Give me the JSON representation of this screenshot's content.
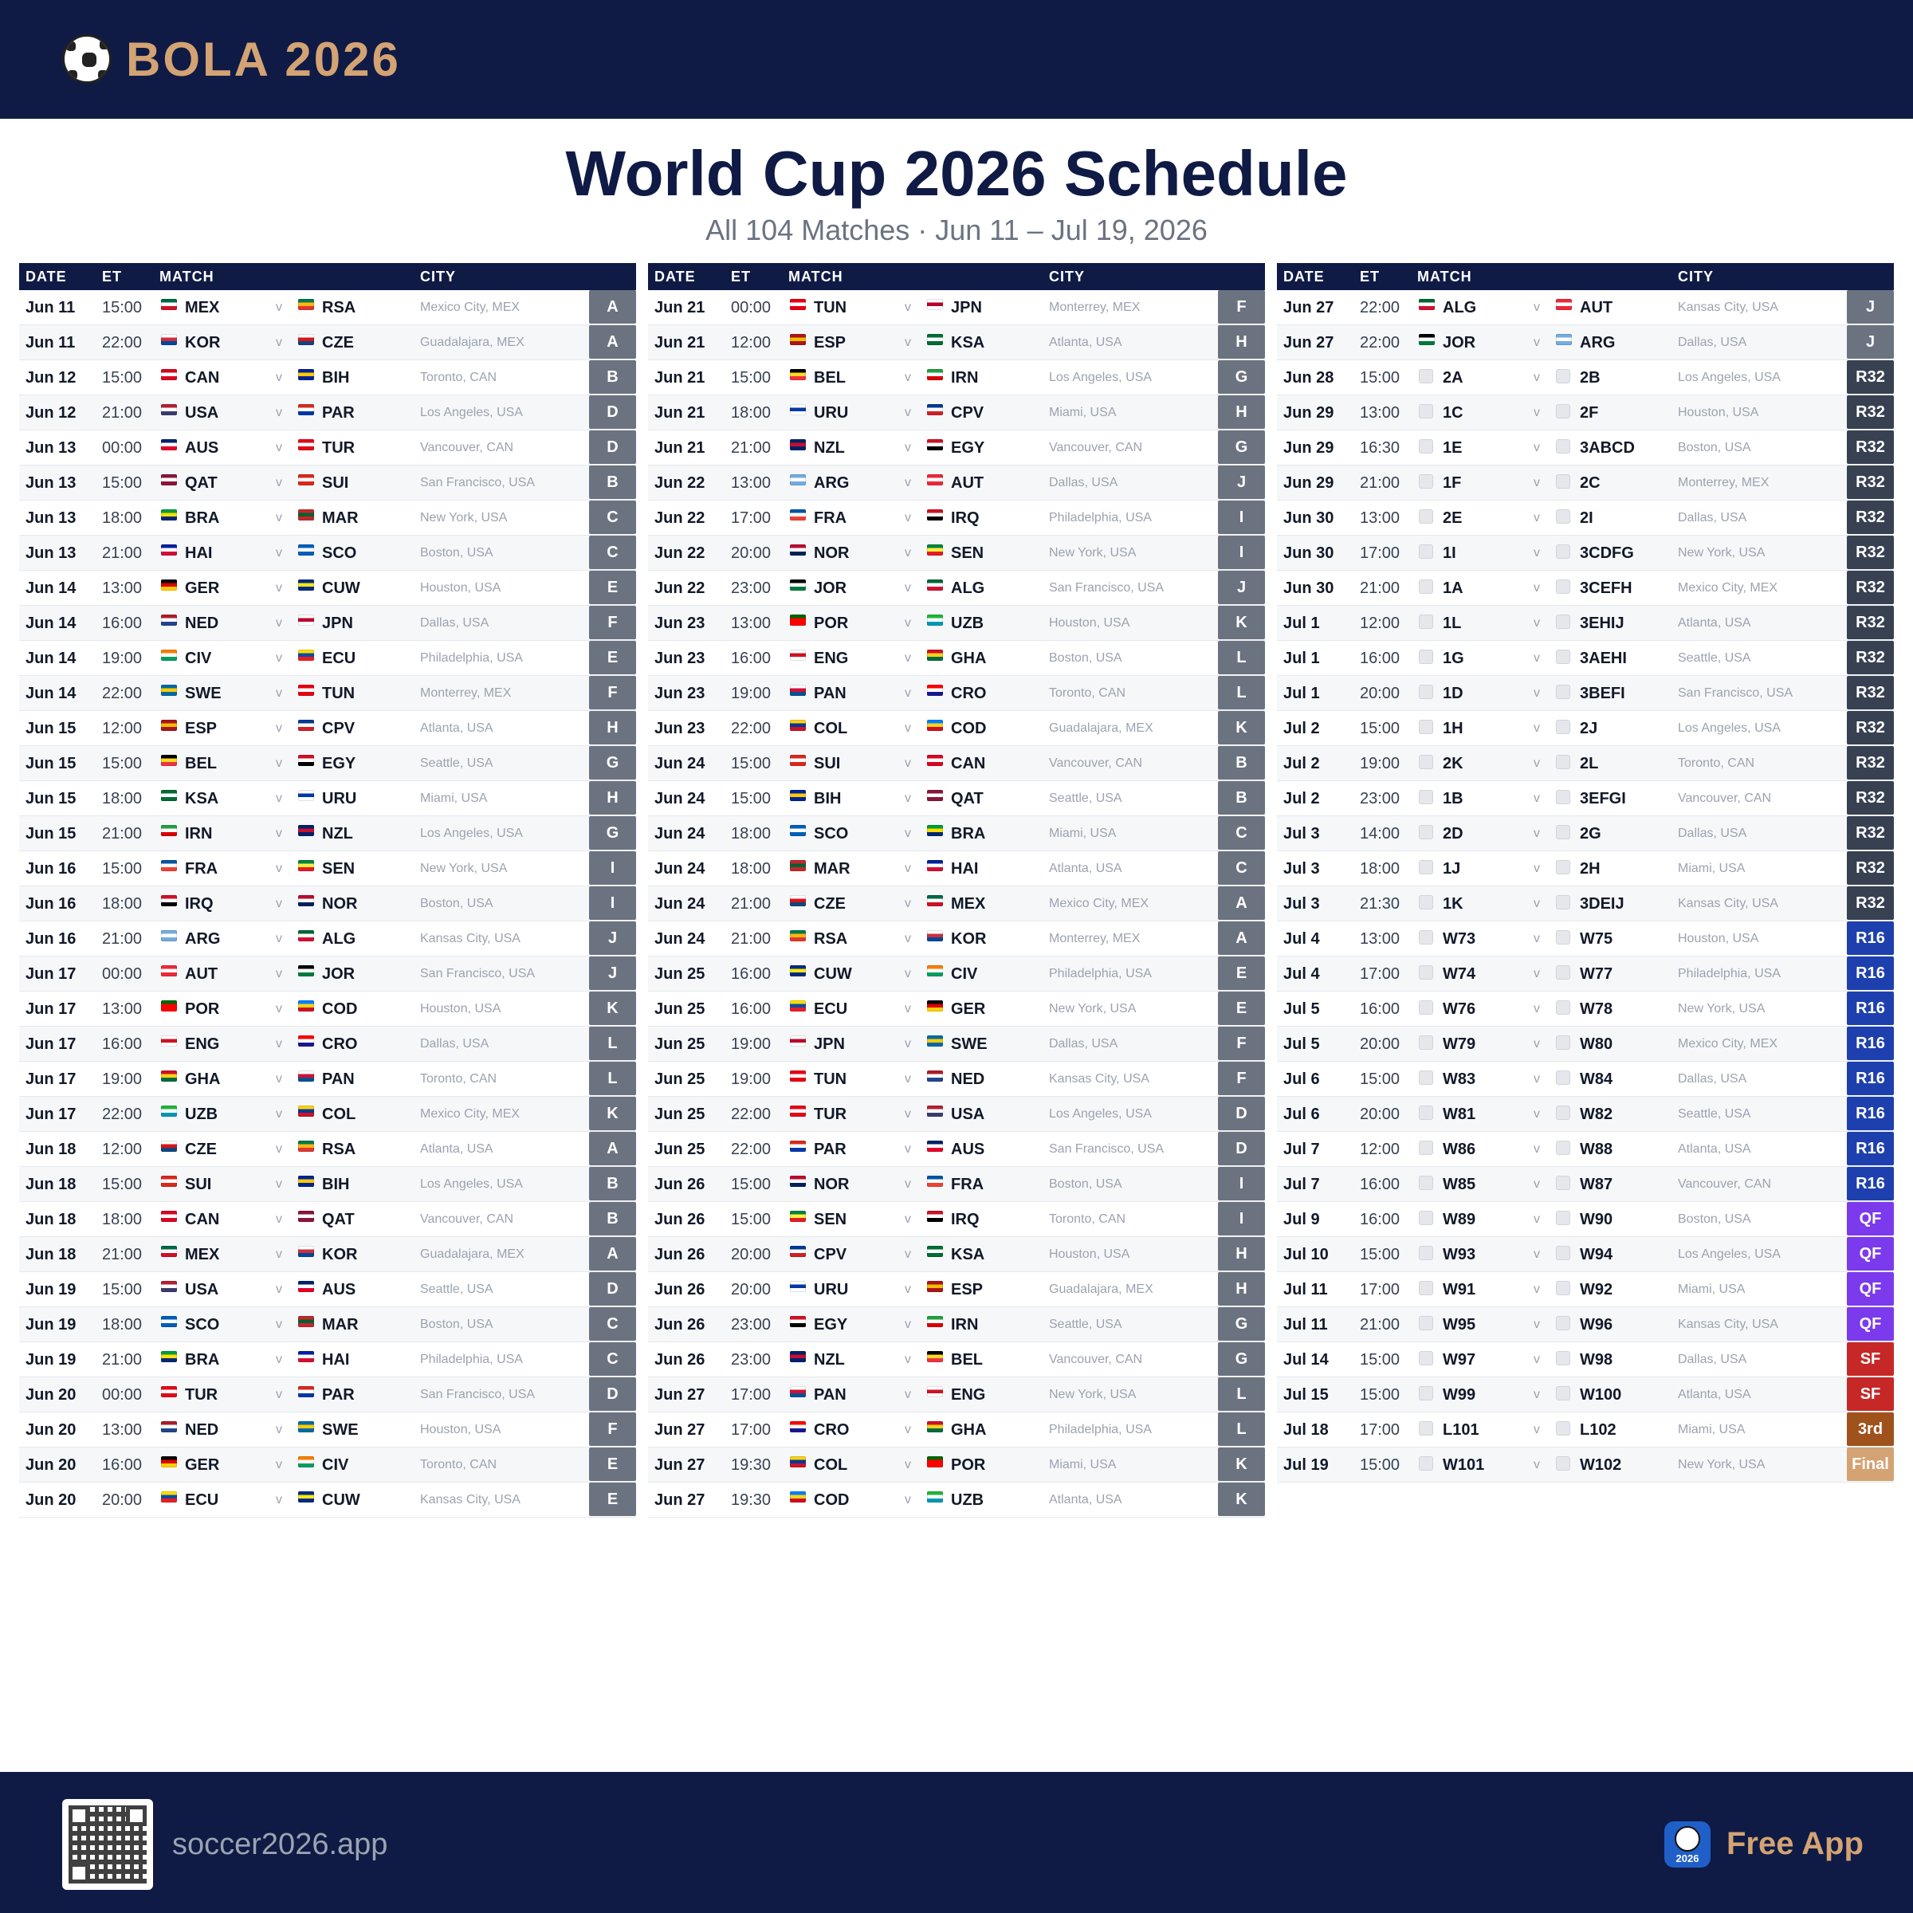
{
  "brand": {
    "name": "BOLA 2026",
    "icon": "soccer-ball-icon"
  },
  "title": "World Cup 2026 Schedule",
  "subtitle": "All 104 Matches · Jun 11 – Jul 19, 2026",
  "headers": {
    "date": "DATE",
    "et": "ET",
    "match": "MATCH",
    "city": "CITY"
  },
  "vs": "v",
  "stage_colors": {
    "group": "#6b7280",
    "R32": "#374151",
    "R16": "#1e40af",
    "QF": "#7c3aed",
    "SF": "#c62828",
    "3rd": "#a0521d",
    "Final": "#d4a373"
  },
  "columns": [
    [
      [
        "Jun 11",
        "15:00",
        "MEX",
        "RSA",
        "Mexico City, MEX",
        "A"
      ],
      [
        "Jun 11",
        "22:00",
        "KOR",
        "CZE",
        "Guadalajara, MEX",
        "A"
      ],
      [
        "Jun 12",
        "15:00",
        "CAN",
        "BIH",
        "Toronto, CAN",
        "B"
      ],
      [
        "Jun 12",
        "21:00",
        "USA",
        "PAR",
        "Los Angeles, USA",
        "D"
      ],
      [
        "Jun 13",
        "00:00",
        "AUS",
        "TUR",
        "Vancouver, CAN",
        "D"
      ],
      [
        "Jun 13",
        "15:00",
        "QAT",
        "SUI",
        "San Francisco, USA",
        "B"
      ],
      [
        "Jun 13",
        "18:00",
        "BRA",
        "MAR",
        "New York, USA",
        "C"
      ],
      [
        "Jun 13",
        "21:00",
        "HAI",
        "SCO",
        "Boston, USA",
        "C"
      ],
      [
        "Jun 14",
        "13:00",
        "GER",
        "CUW",
        "Houston, USA",
        "E"
      ],
      [
        "Jun 14",
        "16:00",
        "NED",
        "JPN",
        "Dallas, USA",
        "F"
      ],
      [
        "Jun 14",
        "19:00",
        "CIV",
        "ECU",
        "Philadelphia, USA",
        "E"
      ],
      [
        "Jun 14",
        "22:00",
        "SWE",
        "TUN",
        "Monterrey, MEX",
        "F"
      ],
      [
        "Jun 15",
        "12:00",
        "ESP",
        "CPV",
        "Atlanta, USA",
        "H"
      ],
      [
        "Jun 15",
        "15:00",
        "BEL",
        "EGY",
        "Seattle, USA",
        "G"
      ],
      [
        "Jun 15",
        "18:00",
        "KSA",
        "URU",
        "Miami, USA",
        "H"
      ],
      [
        "Jun 15",
        "21:00",
        "IRN",
        "NZL",
        "Los Angeles, USA",
        "G"
      ],
      [
        "Jun 16",
        "15:00",
        "FRA",
        "SEN",
        "New York, USA",
        "I"
      ],
      [
        "Jun 16",
        "18:00",
        "IRQ",
        "NOR",
        "Boston, USA",
        "I"
      ],
      [
        "Jun 16",
        "21:00",
        "ARG",
        "ALG",
        "Kansas City, USA",
        "J"
      ],
      [
        "Jun 17",
        "00:00",
        "AUT",
        "JOR",
        "San Francisco, USA",
        "J"
      ],
      [
        "Jun 17",
        "13:00",
        "POR",
        "COD",
        "Houston, USA",
        "K"
      ],
      [
        "Jun 17",
        "16:00",
        "ENG",
        "CRO",
        "Dallas, USA",
        "L"
      ],
      [
        "Jun 17",
        "19:00",
        "GHA",
        "PAN",
        "Toronto, CAN",
        "L"
      ],
      [
        "Jun 17",
        "22:00",
        "UZB",
        "COL",
        "Mexico City, MEX",
        "K"
      ],
      [
        "Jun 18",
        "12:00",
        "CZE",
        "RSA",
        "Atlanta, USA",
        "A"
      ],
      [
        "Jun 18",
        "15:00",
        "SUI",
        "BIH",
        "Los Angeles, USA",
        "B"
      ],
      [
        "Jun 18",
        "18:00",
        "CAN",
        "QAT",
        "Vancouver, CAN",
        "B"
      ],
      [
        "Jun 18",
        "21:00",
        "MEX",
        "KOR",
        "Guadalajara, MEX",
        "A"
      ],
      [
        "Jun 19",
        "15:00",
        "USA",
        "AUS",
        "Seattle, USA",
        "D"
      ],
      [
        "Jun 19",
        "18:00",
        "SCO",
        "MAR",
        "Boston, USA",
        "C"
      ],
      [
        "Jun 19",
        "21:00",
        "BRA",
        "HAI",
        "Philadelphia, USA",
        "C"
      ],
      [
        "Jun 20",
        "00:00",
        "TUR",
        "PAR",
        "San Francisco, USA",
        "D"
      ],
      [
        "Jun 20",
        "13:00",
        "NED",
        "SWE",
        "Houston, USA",
        "F"
      ],
      [
        "Jun 20",
        "16:00",
        "GER",
        "CIV",
        "Toronto, CAN",
        "E"
      ],
      [
        "Jun 20",
        "20:00",
        "ECU",
        "CUW",
        "Kansas City, USA",
        "E"
      ]
    ],
    [
      [
        "Jun 21",
        "00:00",
        "TUN",
        "JPN",
        "Monterrey, MEX",
        "F"
      ],
      [
        "Jun 21",
        "12:00",
        "ESP",
        "KSA",
        "Atlanta, USA",
        "H"
      ],
      [
        "Jun 21",
        "15:00",
        "BEL",
        "IRN",
        "Los Angeles, USA",
        "G"
      ],
      [
        "Jun 21",
        "18:00",
        "URU",
        "CPV",
        "Miami, USA",
        "H"
      ],
      [
        "Jun 21",
        "21:00",
        "NZL",
        "EGY",
        "Vancouver, CAN",
        "G"
      ],
      [
        "Jun 22",
        "13:00",
        "ARG",
        "AUT",
        "Dallas, USA",
        "J"
      ],
      [
        "Jun 22",
        "17:00",
        "FRA",
        "IRQ",
        "Philadelphia, USA",
        "I"
      ],
      [
        "Jun 22",
        "20:00",
        "NOR",
        "SEN",
        "New York, USA",
        "I"
      ],
      [
        "Jun 22",
        "23:00",
        "JOR",
        "ALG",
        "San Francisco, USA",
        "J"
      ],
      [
        "Jun 23",
        "13:00",
        "POR",
        "UZB",
        "Houston, USA",
        "K"
      ],
      [
        "Jun 23",
        "16:00",
        "ENG",
        "GHA",
        "Boston, USA",
        "L"
      ],
      [
        "Jun 23",
        "19:00",
        "PAN",
        "CRO",
        "Toronto, CAN",
        "L"
      ],
      [
        "Jun 23",
        "22:00",
        "COL",
        "COD",
        "Guadalajara, MEX",
        "K"
      ],
      [
        "Jun 24",
        "15:00",
        "SUI",
        "CAN",
        "Vancouver, CAN",
        "B"
      ],
      [
        "Jun 24",
        "15:00",
        "BIH",
        "QAT",
        "Seattle, USA",
        "B"
      ],
      [
        "Jun 24",
        "18:00",
        "SCO",
        "BRA",
        "Miami, USA",
        "C"
      ],
      [
        "Jun 24",
        "18:00",
        "MAR",
        "HAI",
        "Atlanta, USA",
        "C"
      ],
      [
        "Jun 24",
        "21:00",
        "CZE",
        "MEX",
        "Mexico City, MEX",
        "A"
      ],
      [
        "Jun 24",
        "21:00",
        "RSA",
        "KOR",
        "Monterrey, MEX",
        "A"
      ],
      [
        "Jun 25",
        "16:00",
        "CUW",
        "CIV",
        "Philadelphia, USA",
        "E"
      ],
      [
        "Jun 25",
        "16:00",
        "ECU",
        "GER",
        "New York, USA",
        "E"
      ],
      [
        "Jun 25",
        "19:00",
        "JPN",
        "SWE",
        "Dallas, USA",
        "F"
      ],
      [
        "Jun 25",
        "19:00",
        "TUN",
        "NED",
        "Kansas City, USA",
        "F"
      ],
      [
        "Jun 25",
        "22:00",
        "TUR",
        "USA",
        "Los Angeles, USA",
        "D"
      ],
      [
        "Jun 25",
        "22:00",
        "PAR",
        "AUS",
        "San Francisco, USA",
        "D"
      ],
      [
        "Jun 26",
        "15:00",
        "NOR",
        "FRA",
        "Boston, USA",
        "I"
      ],
      [
        "Jun 26",
        "15:00",
        "SEN",
        "IRQ",
        "Toronto, CAN",
        "I"
      ],
      [
        "Jun 26",
        "20:00",
        "CPV",
        "KSA",
        "Houston, USA",
        "H"
      ],
      [
        "Jun 26",
        "20:00",
        "URU",
        "ESP",
        "Guadalajara, MEX",
        "H"
      ],
      [
        "Jun 26",
        "23:00",
        "EGY",
        "IRN",
        "Seattle, USA",
        "G"
      ],
      [
        "Jun 26",
        "23:00",
        "NZL",
        "BEL",
        "Vancouver, CAN",
        "G"
      ],
      [
        "Jun 27",
        "17:00",
        "PAN",
        "ENG",
        "New York, USA",
        "L"
      ],
      [
        "Jun 27",
        "17:00",
        "CRO",
        "GHA",
        "Philadelphia, USA",
        "L"
      ],
      [
        "Jun 27",
        "19:30",
        "COL",
        "POR",
        "Miami, USA",
        "K"
      ],
      [
        "Jun 27",
        "19:30",
        "COD",
        "UZB",
        "Atlanta, USA",
        "K"
      ]
    ],
    [
      [
        "Jun 27",
        "22:00",
        "ALG",
        "AUT",
        "Kansas City, USA",
        "J"
      ],
      [
        "Jun 27",
        "22:00",
        "JOR",
        "ARG",
        "Dallas, USA",
        "J"
      ],
      [
        "Jun 28",
        "15:00",
        "2A",
        "2B",
        "Los Angeles, USA",
        "R32"
      ],
      [
        "Jun 29",
        "13:00",
        "1C",
        "2F",
        "Houston, USA",
        "R32"
      ],
      [
        "Jun 29",
        "16:30",
        "1E",
        "3ABCD",
        "Boston, USA",
        "R32"
      ],
      [
        "Jun 29",
        "21:00",
        "1F",
        "2C",
        "Monterrey, MEX",
        "R32"
      ],
      [
        "Jun 30",
        "13:00",
        "2E",
        "2I",
        "Dallas, USA",
        "R32"
      ],
      [
        "Jun 30",
        "17:00",
        "1I",
        "3CDFG",
        "New York, USA",
        "R32"
      ],
      [
        "Jun 30",
        "21:00",
        "1A",
        "3CEFH",
        "Mexico City, MEX",
        "R32"
      ],
      [
        "Jul 1",
        "12:00",
        "1L",
        "3EHIJ",
        "Atlanta, USA",
        "R32"
      ],
      [
        "Jul 1",
        "16:00",
        "1G",
        "3AEHI",
        "Seattle, USA",
        "R32"
      ],
      [
        "Jul 1",
        "20:00",
        "1D",
        "3BEFI",
        "San Francisco, USA",
        "R32"
      ],
      [
        "Jul 2",
        "15:00",
        "1H",
        "2J",
        "Los Angeles, USA",
        "R32"
      ],
      [
        "Jul 2",
        "19:00",
        "2K",
        "2L",
        "Toronto, CAN",
        "R32"
      ],
      [
        "Jul 2",
        "23:00",
        "1B",
        "3EFGI",
        "Vancouver, CAN",
        "R32"
      ],
      [
        "Jul 3",
        "14:00",
        "2D",
        "2G",
        "Dallas, USA",
        "R32"
      ],
      [
        "Jul 3",
        "18:00",
        "1J",
        "2H",
        "Miami, USA",
        "R32"
      ],
      [
        "Jul 3",
        "21:30",
        "1K",
        "3DEIJ",
        "Kansas City, USA",
        "R32"
      ],
      [
        "Jul 4",
        "13:00",
        "W73",
        "W75",
        "Houston, USA",
        "R16"
      ],
      [
        "Jul 4",
        "17:00",
        "W74",
        "W77",
        "Philadelphia, USA",
        "R16"
      ],
      [
        "Jul 5",
        "16:00",
        "W76",
        "W78",
        "New York, USA",
        "R16"
      ],
      [
        "Jul 5",
        "20:00",
        "W79",
        "W80",
        "Mexico City, MEX",
        "R16"
      ],
      [
        "Jul 6",
        "15:00",
        "W83",
        "W84",
        "Dallas, USA",
        "R16"
      ],
      [
        "Jul 6",
        "20:00",
        "W81",
        "W82",
        "Seattle, USA",
        "R16"
      ],
      [
        "Jul 7",
        "12:00",
        "W86",
        "W88",
        "Atlanta, USA",
        "R16"
      ],
      [
        "Jul 7",
        "16:00",
        "W85",
        "W87",
        "Vancouver, CAN",
        "R16"
      ],
      [
        "Jul 9",
        "16:00",
        "W89",
        "W90",
        "Boston, USA",
        "QF"
      ],
      [
        "Jul 10",
        "15:00",
        "W93",
        "W94",
        "Los Angeles, USA",
        "QF"
      ],
      [
        "Jul 11",
        "17:00",
        "W91",
        "W92",
        "Miami, USA",
        "QF"
      ],
      [
        "Jul 11",
        "21:00",
        "W95",
        "W96",
        "Kansas City, USA",
        "QF"
      ],
      [
        "Jul 14",
        "15:00",
        "W97",
        "W98",
        "Dallas, USA",
        "SF"
      ],
      [
        "Jul 15",
        "15:00",
        "W99",
        "W100",
        "Atlanta, USA",
        "SF"
      ],
      [
        "Jul 18",
        "17:00",
        "L101",
        "L102",
        "Miami, USA",
        "3rd"
      ],
      [
        "Jul 19",
        "15:00",
        "W101",
        "W102",
        "New York, USA",
        "Final"
      ]
    ]
  ],
  "flags": {
    "MEX": [
      "#006847",
      "#ffffff",
      "#ce1126"
    ],
    "RSA": [
      "#007a4d",
      "#ffb612",
      "#de3831"
    ],
    "KOR": [
      "#ffffff",
      "#cd2e3a",
      "#0047a0"
    ],
    "CZE": [
      "#ffffff",
      "#d7141a",
      "#11457e"
    ],
    "CAN": [
      "#d80621",
      "#ffffff",
      "#d80621"
    ],
    "BIH": [
      "#002395",
      "#fecb00",
      "#002395"
    ],
    "USA": [
      "#b22234",
      "#ffffff",
      "#3c3b6e"
    ],
    "PAR": [
      "#d52b1e",
      "#ffffff",
      "#0038a8"
    ],
    "AUS": [
      "#012169",
      "#ffffff",
      "#e4002b"
    ],
    "TUR": [
      "#e30a17",
      "#ffffff",
      "#e30a17"
    ],
    "QAT": [
      "#8a1538",
      "#ffffff",
      "#8a1538"
    ],
    "SUI": [
      "#da291c",
      "#ffffff",
      "#da291c"
    ],
    "BRA": [
      "#009c3b",
      "#ffdf00",
      "#002776"
    ],
    "MAR": [
      "#c1272d",
      "#006233",
      "#c1272d"
    ],
    "HAI": [
      "#00209f",
      "#ffffff",
      "#d21034"
    ],
    "SCO": [
      "#005eb8",
      "#ffffff",
      "#005eb8"
    ],
    "GER": [
      "#000000",
      "#dd0000",
      "#ffce00"
    ],
    "CUW": [
      "#002b7f",
      "#f9e814",
      "#002b7f"
    ],
    "NED": [
      "#ae1c28",
      "#ffffff",
      "#21468b"
    ],
    "JPN": [
      "#ffffff",
      "#bc002d",
      "#ffffff"
    ],
    "CIV": [
      "#f77f00",
      "#ffffff",
      "#009e60"
    ],
    "ECU": [
      "#ffdd00",
      "#034ea2",
      "#ed1c24"
    ],
    "SWE": [
      "#006aa7",
      "#fecc00",
      "#006aa7"
    ],
    "TUN": [
      "#e70013",
      "#ffffff",
      "#e70013"
    ],
    "ESP": [
      "#aa151b",
      "#f1bf00",
      "#aa151b"
    ],
    "CPV": [
      "#003893",
      "#ffffff",
      "#cf2027"
    ],
    "BEL": [
      "#000000",
      "#fdda24",
      "#ef3340"
    ],
    "EGY": [
      "#ce1126",
      "#ffffff",
      "#000000"
    ],
    "KSA": [
      "#006c35",
      "#ffffff",
      "#006c35"
    ],
    "URU": [
      "#ffffff",
      "#0038a8",
      "#ffffff"
    ],
    "IRN": [
      "#239f40",
      "#ffffff",
      "#da0000"
    ],
    "NZL": [
      "#012169",
      "#c8102e",
      "#012169"
    ],
    "FRA": [
      "#0055a4",
      "#ffffff",
      "#ef4135"
    ],
    "SEN": [
      "#00853f",
      "#fdef42",
      "#e31b23"
    ],
    "IRQ": [
      "#ce1126",
      "#ffffff",
      "#000000"
    ],
    "NOR": [
      "#ba0c2f",
      "#ffffff",
      "#00205b"
    ],
    "ARG": [
      "#74acdf",
      "#ffffff",
      "#74acdf"
    ],
    "ALG": [
      "#006633",
      "#ffffff",
      "#d21034"
    ],
    "AUT": [
      "#ed2939",
      "#ffffff",
      "#ed2939"
    ],
    "JOR": [
      "#000000",
      "#ffffff",
      "#007a3d"
    ],
    "POR": [
      "#006600",
      "#ff0000",
      "#ff0000"
    ],
    "COD": [
      "#007fff",
      "#f7d618",
      "#ce1021"
    ],
    "ENG": [
      "#ffffff",
      "#ce1124",
      "#ffffff"
    ],
    "CRO": [
      "#ff0000",
      "#ffffff",
      "#171796"
    ],
    "GHA": [
      "#ce1126",
      "#fcd116",
      "#006b3f"
    ],
    "PAN": [
      "#ffffff",
      "#d21034",
      "#005293"
    ],
    "UZB": [
      "#1eb53a",
      "#ffffff",
      "#0099b5"
    ],
    "COL": [
      "#fcd116",
      "#003893",
      "#ce1126"
    ]
  },
  "footer": {
    "site": "soccer2026.app",
    "cta": "Free App",
    "app_badge": "2026",
    "qr_icon": "qr-code-icon",
    "app_icon": "soccer-app-icon"
  }
}
